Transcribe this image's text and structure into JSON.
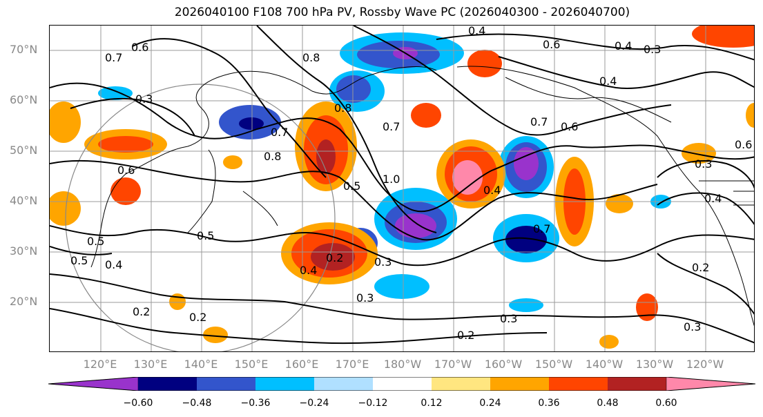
{
  "title": "2026040100 F108 700 hPa PV, Rossby Wave PC (2026040300 - 2026040700)",
  "map": {
    "lat_labels": [
      "70°N",
      "60°N",
      "50°N",
      "40°N",
      "30°N",
      "20°N"
    ],
    "lon_labels": [
      "120°E",
      "130°E",
      "140°E",
      "150°E",
      "160°E",
      "170°E",
      "180°W",
      "170°W",
      "160°W",
      "150°W",
      "140°W",
      "130°W",
      "120°W"
    ],
    "contour_labels": [
      "0.4",
      "0.6",
      "0.7",
      "0.6",
      "0.3",
      "0.8",
      "0.4",
      "0.8",
      "0.7",
      "0.7",
      "0.6",
      "0.4",
      "0.3",
      "0.6",
      "0.5",
      "0.8",
      "0.7",
      "1.0",
      "0.4",
      "0.4",
      "0.7",
      "0.5",
      "0.2",
      "0.4",
      "0.3",
      "0.3",
      "0.2",
      "0.2",
      "0.3",
      "0.2",
      "0.3",
      "0.2",
      "0.5",
      "0.5",
      "0.3",
      "0.4",
      "0.6"
    ],
    "extent": {
      "lon": [
        112,
        248
      ],
      "lat": [
        10,
        75
      ]
    }
  },
  "colorbar": {
    "ticks": [
      "−0.60",
      "−0.48",
      "−0.36",
      "−0.24",
      "−0.12",
      "0.12",
      "0.24",
      "0.36",
      "0.48",
      "0.60"
    ],
    "colors": [
      "#9933cc",
      "#000080",
      "#3355cc",
      "#00bfff",
      "#b0e0ff",
      "#ffffff",
      "#ffe680",
      "#ffa500",
      "#ff4500",
      "#b22222",
      "#ff88aa"
    ]
  }
}
